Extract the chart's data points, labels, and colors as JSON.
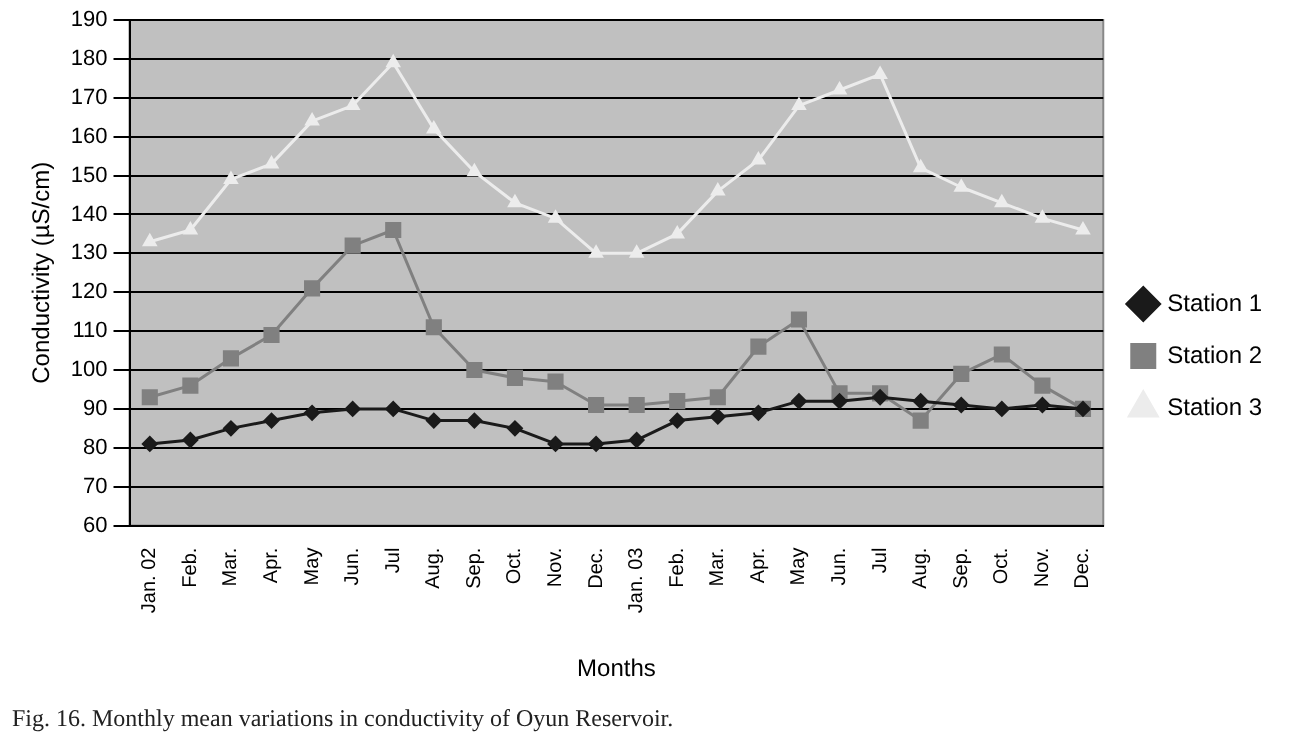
{
  "chart_data": {
    "type": "line",
    "xlabel": "Months",
    "ylabel": "Conductivity (µS/cm)",
    "annotations": [
      "Fig. 16. Monthly mean variations in conductivity of Oyun Reservoir."
    ],
    "categories": [
      "Jan. 02",
      "Feb.",
      "Mar.",
      "Apr.",
      "May",
      "Jun.",
      "Jul",
      "Aug.",
      "Sep.",
      "Oct.",
      "Nov.",
      "Dec.",
      "Jan. 03",
      "Feb.",
      "Mar.",
      "Apr.",
      "May",
      "Jun.",
      "Jul",
      "Aug.",
      "Sep.",
      "Oct.",
      "Nov.",
      "Dec."
    ],
    "series": [
      {
        "name": "Station 1",
        "color": "#1a1a1a",
        "marker": "diamond",
        "values": [
          81,
          82,
          85,
          87,
          89,
          90,
          90,
          87,
          87,
          85,
          81,
          81,
          82,
          87,
          88,
          89,
          92,
          92,
          93,
          92,
          91,
          90,
          91,
          90
        ]
      },
      {
        "name": "Station 2",
        "color": "#808080",
        "marker": "square",
        "values": [
          93,
          96,
          103,
          109,
          121,
          132,
          136,
          111,
          100,
          98,
          97,
          91,
          91,
          92,
          93,
          106,
          113,
          94,
          94,
          87,
          99,
          104,
          96,
          90
        ]
      },
      {
        "name": "Station 3",
        "color": "#ececec",
        "marker": "triangle",
        "values": [
          133,
          136,
          149,
          153,
          164,
          168,
          179,
          162,
          151,
          143,
          139,
          130,
          130,
          135,
          146,
          154,
          168,
          172,
          176,
          152,
          147,
          143,
          139,
          136
        ]
      }
    ],
    "ylim": [
      60,
      190
    ],
    "yticks": [
      60,
      70,
      80,
      90,
      100,
      110,
      120,
      130,
      140,
      150,
      160,
      170,
      180,
      190
    ],
    "grid": "y",
    "legend": "right"
  }
}
